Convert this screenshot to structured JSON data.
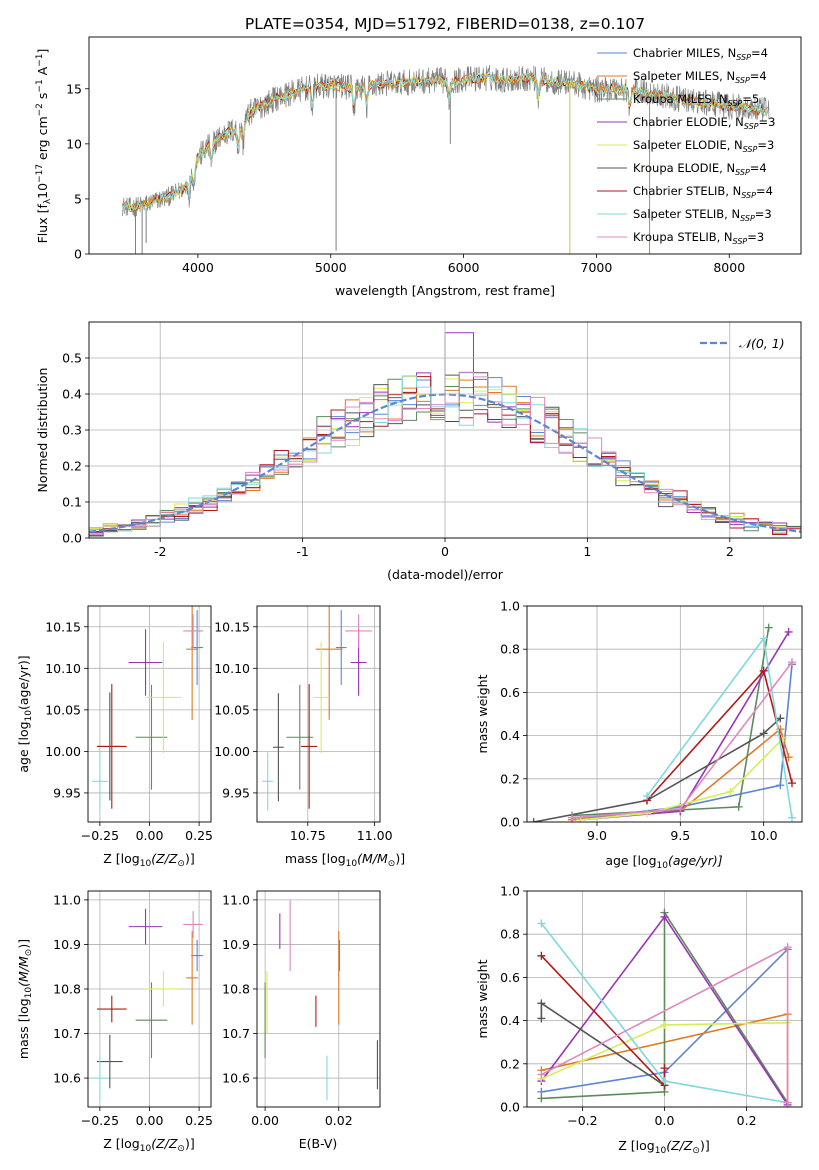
{
  "title": "PLATE=0354, MJD=51792, FIBERID=0138, z=0.107",
  "colors": {
    "s0": "#5b86d6",
    "s1": "#e07a25",
    "s2": "#5e8a5e",
    "s3": "#9b35b5",
    "s4": "#d4ed5a",
    "s5": "#555555",
    "s6": "#b01a1a",
    "s7": "#80d8e0",
    "s8": "#e087bf",
    "spectrum": "#808080"
  },
  "chart_data": [
    {
      "id": "spectrum",
      "type": "line",
      "xlabel": "wavelength [Angstrom, rest frame]",
      "ylabel": "Flux [f",
      "ylabel_sub": "λ",
      "ylabel_rest": "10",
      "ylabel_sup1": "−17",
      "ylabel_mid": " erg cm",
      "ylabel_sup2": "−2",
      "ylabel_mid2": " s",
      "ylabel_sup3": "−1",
      "ylabel_end": " A",
      "ylabel_sup4": "−1",
      "ylabel_close": "]",
      "xlim": [
        3180,
        8540
      ],
      "ylim": [
        0,
        19.7
      ],
      "xticks": [
        4000,
        5000,
        6000,
        7000,
        8000
      ],
      "yticks": [
        0,
        5,
        10,
        15
      ],
      "legend": [
        {
          "imf": "Chabrier MILES, N",
          "n": "=4"
        },
        {
          "imf": "Salpeter MILES, N",
          "n": "=4"
        },
        {
          "imf": "Kroupa MILES, N",
          "n": "=5"
        },
        {
          "imf": "Chabrier ELODIE, N",
          "n": "=3"
        },
        {
          "imf": "Salpeter ELODIE, N",
          "n": "=3"
        },
        {
          "imf": "Kroupa ELODIE, N",
          "n": "=4"
        },
        {
          "imf": "Chabrier STELIB, N",
          "n": "=4"
        },
        {
          "imf": "Salpeter STELIB, N",
          "n": "=3"
        },
        {
          "imf": "Kroupa STELIB, N",
          "n": "=3"
        }
      ],
      "legend_sub": "SSP",
      "continuum": [
        [
          3420,
          4.4
        ],
        [
          3500,
          4.2
        ],
        [
          3600,
          4.5
        ],
        [
          3700,
          4.9
        ],
        [
          3800,
          5.3
        ],
        [
          3900,
          6.0
        ],
        [
          4000,
          8.8
        ],
        [
          4100,
          10.0
        ],
        [
          4200,
          10.9
        ],
        [
          4300,
          11.4
        ],
        [
          4400,
          12.9
        ],
        [
          4500,
          13.6
        ],
        [
          4600,
          14.2
        ],
        [
          4700,
          14.6
        ],
        [
          4800,
          15.0
        ],
        [
          4900,
          15.2
        ],
        [
          5000,
          15.3
        ],
        [
          5100,
          15.2
        ],
        [
          5200,
          15.0
        ],
        [
          5300,
          15.3
        ],
        [
          5400,
          15.5
        ],
        [
          5500,
          15.5
        ],
        [
          5600,
          15.6
        ],
        [
          5700,
          15.7
        ],
        [
          5800,
          15.8
        ],
        [
          5900,
          15.6
        ],
        [
          6000,
          15.9
        ],
        [
          6100,
          15.9
        ],
        [
          6200,
          16.0
        ],
        [
          6300,
          15.8
        ],
        [
          6400,
          15.9
        ],
        [
          6500,
          16.0
        ],
        [
          6600,
          15.8
        ],
        [
          6700,
          15.6
        ],
        [
          6800,
          15.6
        ],
        [
          6900,
          15.2
        ],
        [
          7000,
          14.9
        ],
        [
          7100,
          15.0
        ],
        [
          7200,
          15.0
        ],
        [
          7300,
          14.8
        ],
        [
          7400,
          14.6
        ],
        [
          7500,
          14.4
        ],
        [
          7600,
          14.1
        ],
        [
          7700,
          13.9
        ],
        [
          7800,
          13.7
        ],
        [
          7900,
          13.6
        ],
        [
          8000,
          13.4
        ],
        [
          8100,
          13.3
        ],
        [
          8200,
          13.1
        ],
        [
          8300,
          13.0
        ]
      ]
    },
    {
      "id": "histogram",
      "type": "step",
      "xlabel": "(data-model)/error",
      "ylabel": "Normed distribution",
      "xlim": [
        -2.5,
        2.5
      ],
      "ylim": [
        0,
        0.6
      ],
      "xticks": [
        -2,
        -1,
        0,
        1,
        2
      ],
      "yticks": [
        0.0,
        0.1,
        0.2,
        0.3,
        0.4,
        0.5
      ],
      "legend_label": "𝒩(0, 1)",
      "bin_start": -2.5,
      "bin_width": 0.1
    },
    {
      "id": "age_vs_Z",
      "type": "errorbar",
      "xlabel": "Z [log",
      "xlabel_sub": "10",
      "xlabel_mid": "(Z/Z",
      "xlabel_sub2": "⊙",
      "xlabel_end": ")]",
      "ylabel": "age  [log",
      "ylabel_sub": "10",
      "ylabel_end": "(age/yr)]",
      "xlim": [
        -0.31,
        0.31
      ],
      "ylim": [
        9.915,
        10.175
      ],
      "xticks": [
        -0.25,
        0.0,
        0.25
      ],
      "xtick_labels": [
        "−0.25",
        "0.00",
        "0.25"
      ],
      "yticks": [
        9.95,
        10.0,
        10.05,
        10.1,
        10.15
      ],
      "points": [
        {
          "s": 0,
          "x": 0.24,
          "y": 10.125,
          "xe": 0.03,
          "ye": 0.045
        },
        {
          "s": 1,
          "x": 0.215,
          "y": 10.123,
          "xe": 0.03,
          "ye": 0.085
        },
        {
          "s": 2,
          "x": 0.01,
          "y": 10.017,
          "xe": 0.08,
          "ye": 0.063
        },
        {
          "s": 3,
          "x": -0.02,
          "y": 10.107,
          "xe": 0.085,
          "ye": 0.04
        },
        {
          "s": 4,
          "x": 0.07,
          "y": 10.065,
          "xe": 0.09,
          "ye": 0.067
        },
        {
          "s": 5,
          "x": -0.2,
          "y": 10.006,
          "xe": 0.06,
          "ye": 0.065
        },
        {
          "s": 6,
          "x": -0.19,
          "y": 10.006,
          "xe": 0.075,
          "ye": 0.075
        },
        {
          "s": 7,
          "x": -0.25,
          "y": 9.964,
          "xe": 0.04,
          "ye": 0.035
        },
        {
          "s": 8,
          "x": 0.22,
          "y": 10.145,
          "xe": 0.05,
          "ye": 0.02
        }
      ]
    },
    {
      "id": "age_vs_mass",
      "type": "errorbar",
      "xlabel": "mass [log",
      "xlabel_sub": "10",
      "xlabel_mid": "(M/M",
      "xlabel_sub2": "⊙",
      "xlabel_end": ")]",
      "xlim": [
        10.56,
        11.02
      ],
      "ylim": [
        9.915,
        10.175
      ],
      "xticks": [
        10.75,
        11.0
      ],
      "xtick_labels": [
        "10.75",
        "11.00"
      ],
      "yticks": [
        9.95,
        10.0,
        10.05,
        10.1,
        10.15
      ],
      "points": [
        {
          "s": 0,
          "x": 10.875,
          "y": 10.125,
          "xe": 0.02,
          "ye": 0.045
        },
        {
          "s": 1,
          "x": 10.83,
          "y": 10.123,
          "xe": 0.05,
          "ye": 0.085
        },
        {
          "s": 2,
          "x": 10.72,
          "y": 10.017,
          "xe": 0.05,
          "ye": 0.063
        },
        {
          "s": 3,
          "x": 10.94,
          "y": 10.107,
          "xe": 0.03,
          "ye": 0.04
        },
        {
          "s": 4,
          "x": 10.8,
          "y": 10.065,
          "xe": 0.03,
          "ye": 0.067
        },
        {
          "s": 5,
          "x": 10.64,
          "y": 10.005,
          "xe": 0.02,
          "ye": 0.065
        },
        {
          "s": 6,
          "x": 10.755,
          "y": 10.006,
          "xe": 0.03,
          "ye": 0.075
        },
        {
          "s": 7,
          "x": 10.6,
          "y": 9.964,
          "xe": 0.02,
          "ye": 0.035
        },
        {
          "s": 8,
          "x": 10.94,
          "y": 10.145,
          "xe": 0.05,
          "ye": 0.02
        }
      ]
    },
    {
      "id": "weight_vs_age",
      "type": "line",
      "xlabel": "age  [log",
      "xlabel_sub": "10",
      "xlabel_end": "(age/yr)]",
      "ylabel": "mass weight",
      "xlim": [
        8.58,
        10.23
      ],
      "ylim": [
        0,
        1.0
      ],
      "xticks": [
        9.0,
        9.5,
        10.0
      ],
      "xtick_labels": [
        "9.0",
        "9.5",
        "10.0"
      ],
      "yticks": [
        0.0,
        0.2,
        0.4,
        0.6,
        0.8,
        1.0
      ],
      "series": [
        {
          "s": 0,
          "points": [
            [
              8.85,
              0.01
            ],
            [
              9.5,
              0.07
            ],
            [
              10.1,
              0.17
            ],
            [
              10.17,
              0.73
            ]
          ]
        },
        {
          "s": 1,
          "points": [
            [
              8.85,
              0.01
            ],
            [
              9.5,
              0.05
            ],
            [
              10.1,
              0.43
            ],
            [
              10.15,
              0.3
            ]
          ]
        },
        {
          "s": 2,
          "points": [
            [
              8.85,
              0.03
            ],
            [
              9.85,
              0.07
            ],
            [
              10.03,
              0.9
            ]
          ]
        },
        {
          "s": 3,
          "points": [
            [
              8.9,
              0.01
            ],
            [
              9.5,
              0.05
            ],
            [
              10.15,
              0.88
            ]
          ]
        },
        {
          "s": 4,
          "points": [
            [
              8.9,
              0.01
            ],
            [
              9.3,
              0.04
            ],
            [
              9.8,
              0.14
            ],
            [
              10.12,
              0.39
            ]
          ]
        },
        {
          "s": 5,
          "points": [
            [
              8.62,
              0.0
            ],
            [
              9.3,
              0.1
            ],
            [
              10.0,
              0.41
            ],
            [
              10.1,
              0.48
            ]
          ]
        },
        {
          "s": 6,
          "points": [
            [
              9.3,
              0.1
            ],
            [
              10.0,
              0.7
            ],
            [
              10.17,
              0.18
            ]
          ]
        },
        {
          "s": 7,
          "points": [
            [
              9.3,
              0.12
            ],
            [
              10.0,
              0.85
            ],
            [
              10.17,
              0.02
            ]
          ]
        },
        {
          "s": 8,
          "points": [
            [
              8.85,
              0.02
            ],
            [
              9.5,
              0.06
            ],
            [
              10.17,
              0.74
            ]
          ]
        }
      ]
    },
    {
      "id": "mass_vs_Z",
      "type": "errorbar",
      "xlabel": "Z [log",
      "xlabel_sub": "10",
      "xlabel_mid": "(Z/Z",
      "xlabel_sub2": "⊙",
      "xlabel_end": ")]",
      "ylabel": "mass [log",
      "ylabel_sub": "10",
      "ylabel_mid": "(M/M",
      "ylabel_sub2": "⊙",
      "ylabel_end": ")]",
      "xlim": [
        -0.31,
        0.31
      ],
      "ylim": [
        10.535,
        11.02
      ],
      "xticks": [
        -0.25,
        0.0,
        0.25
      ],
      "xtick_labels": [
        "−0.25",
        "0.00",
        "0.25"
      ],
      "yticks": [
        10.6,
        10.7,
        10.8,
        10.9,
        11.0
      ],
      "points": [
        {
          "s": 0,
          "x": 0.24,
          "y": 10.875,
          "xe": 0.03,
          "ye": 0.035
        },
        {
          "s": 1,
          "x": 0.215,
          "y": 10.825,
          "xe": 0.03,
          "ye": 0.105
        },
        {
          "s": 2,
          "x": 0.01,
          "y": 10.73,
          "xe": 0.08,
          "ye": 0.085
        },
        {
          "s": 3,
          "x": -0.02,
          "y": 10.94,
          "xe": 0.085,
          "ye": 0.04
        },
        {
          "s": 4,
          "x": 0.07,
          "y": 10.8,
          "xe": 0.09,
          "ye": 0.04
        },
        {
          "s": 5,
          "x": -0.2,
          "y": 10.637,
          "xe": 0.065,
          "ye": 0.06
        },
        {
          "s": 6,
          "x": -0.19,
          "y": 10.755,
          "xe": 0.075,
          "ye": 0.03
        },
        {
          "s": 7,
          "x": -0.25,
          "y": 10.6,
          "xe": 0.04,
          "ye": 0.05
        },
        {
          "s": 8,
          "x": 0.22,
          "y": 10.945,
          "xe": 0.05,
          "ye": 0.03
        }
      ]
    },
    {
      "id": "mass_vs_ebv",
      "type": "errorbar",
      "xlabel": "E(B-V)",
      "xlim": [
        -0.0022,
        0.0312
      ],
      "ylim": [
        10.535,
        11.02
      ],
      "xticks": [
        0.0,
        0.02
      ],
      "xtick_labels": [
        "0.00",
        "0.02"
      ],
      "yticks": [
        10.6,
        10.7,
        10.8,
        10.9,
        11.0
      ],
      "points": [
        {
          "s": 0,
          "x": 0.0202,
          "y": 10.875,
          "xe": 0,
          "ye": 0.035
        },
        {
          "s": 1,
          "x": 0.02,
          "y": 10.825,
          "xe": 0,
          "ye": 0.105
        },
        {
          "s": 2,
          "x": 0.0,
          "y": 10.73,
          "xe": 0,
          "ye": 0.085
        },
        {
          "s": 3,
          "x": 0.004,
          "y": 10.93,
          "xe": 0,
          "ye": 0.04
        },
        {
          "s": 4,
          "x": 0.0005,
          "y": 10.77,
          "xe": 0,
          "ye": 0.07
        },
        {
          "s": 5,
          "x": 0.0305,
          "y": 10.63,
          "xe": 0,
          "ye": 0.055
        },
        {
          "s": 6,
          "x": 0.0138,
          "y": 10.75,
          "xe": 0,
          "ye": 0.035
        },
        {
          "s": 7,
          "x": 0.0168,
          "y": 10.6,
          "xe": 0,
          "ye": 0.05
        },
        {
          "s": 8,
          "x": 0.0068,
          "y": 10.92,
          "xe": 0,
          "ye": 0.08
        }
      ]
    },
    {
      "id": "weight_vs_Z",
      "type": "line",
      "xlabel": "Z [log",
      "xlabel_sub": "10",
      "xlabel_mid": "(Z/Z",
      "xlabel_sub2": "⊙",
      "xlabel_end": ")]",
      "ylabel": "mass weight",
      "xlim": [
        -0.335,
        0.335
      ],
      "ylim": [
        0,
        1.0
      ],
      "xticks": [
        -0.2,
        0.0,
        0.2
      ],
      "xtick_labels": [
        "−0.2",
        "0.0",
        "0.2"
      ],
      "yticks": [
        0.0,
        0.2,
        0.4,
        0.6,
        0.8,
        1.0
      ],
      "series": [
        {
          "s": 0,
          "points": [
            [
              -0.3,
              0.07
            ],
            [
              0.0,
              0.16
            ],
            [
              0.3,
              0.73
            ]
          ]
        },
        {
          "s": 1,
          "points": [
            [
              -0.3,
              0.17
            ],
            [
              0.3,
              0.43
            ],
            [
              0.3,
              0.0
            ]
          ]
        },
        {
          "s": 2,
          "points": [
            [
              -0.3,
              0.04
            ],
            [
              0.0,
              0.07
            ],
            [
              0.0,
              0.9
            ],
            [
              0.3,
              0.02
            ]
          ]
        },
        {
          "s": 3,
          "points": [
            [
              -0.3,
              0.12
            ],
            [
              0.0,
              0.88
            ],
            [
              0.3,
              0.01
            ]
          ]
        },
        {
          "s": 4,
          "points": [
            [
              -0.3,
              0.13
            ],
            [
              0.0,
              0.38
            ],
            [
              0.3,
              0.39
            ]
          ]
        },
        {
          "s": 5,
          "points": [
            [
              -0.3,
              0.41
            ],
            [
              -0.3,
              0.48
            ],
            [
              0.0,
              0.1
            ]
          ]
        },
        {
          "s": 6,
          "points": [
            [
              -0.3,
              0.7
            ],
            [
              0.0,
              0.1
            ],
            [
              0.0,
              0.18
            ]
          ]
        },
        {
          "s": 7,
          "points": [
            [
              -0.3,
              0.85
            ],
            [
              0.0,
              0.12
            ],
            [
              0.3,
              0.02
            ]
          ]
        },
        {
          "s": 8,
          "points": [
            [
              -0.3,
              0.15
            ],
            [
              0.3,
              0.74
            ],
            [
              0.3,
              0.02
            ]
          ]
        }
      ]
    }
  ]
}
